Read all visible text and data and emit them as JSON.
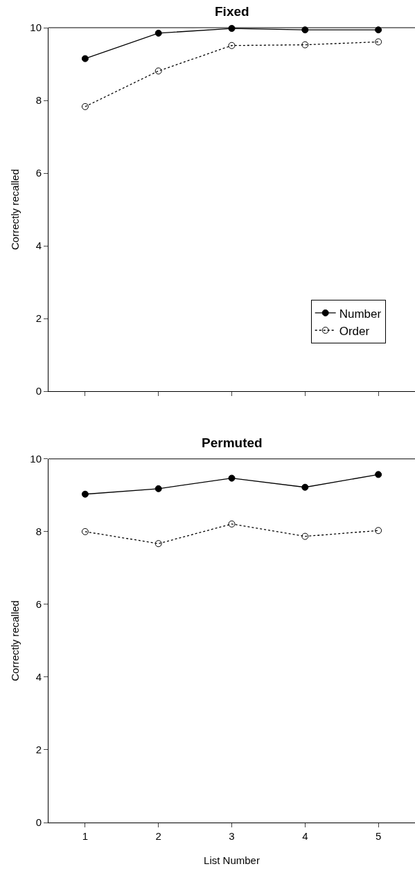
{
  "chart_data": [
    {
      "type": "line",
      "title": "Fixed",
      "ylabel": "Correctly recalled",
      "x": [
        1,
        2,
        3,
        4,
        5
      ],
      "xlim": [
        0.5,
        5.5
      ],
      "xticks": [
        1,
        2,
        3,
        4,
        5
      ],
      "ylim": [
        0,
        10
      ],
      "yticks": [
        0,
        2,
        4,
        6,
        8,
        10
      ],
      "tick_labels": "y",
      "legend": "bottom right",
      "series": [
        {
          "name": "Number",
          "color": "#000000",
          "marker": "circle",
          "line_style": "solid",
          "values": [
            9.15,
            9.85,
            9.98,
            9.94,
            9.94
          ]
        },
        {
          "name": "Order",
          "color": "#000000",
          "marker": "circle-open",
          "line_style": "dotted",
          "values": [
            7.83,
            8.81,
            9.51,
            9.53,
            9.61
          ]
        }
      ]
    },
    {
      "type": "line",
      "title": "Permuted",
      "ylabel": "Correctly recalled",
      "xlabel": "List Number",
      "x": [
        1,
        2,
        3,
        4,
        5
      ],
      "xlim": [
        0.5,
        5.5
      ],
      "xticks": [
        1,
        2,
        3,
        4,
        5
      ],
      "ylim": [
        0,
        10
      ],
      "yticks": [
        0,
        2,
        4,
        6,
        8,
        10
      ],
      "legend": false,
      "series": [
        {
          "color": "#000000",
          "marker": "circle",
          "line_style": "solid",
          "values": [
            9.03,
            9.18,
            9.47,
            9.22,
            9.57
          ]
        },
        {
          "color": "#000000",
          "marker": "circle-open",
          "line_style": "dotted",
          "values": [
            8.0,
            7.67,
            8.21,
            7.87,
            8.03
          ]
        }
      ]
    }
  ]
}
